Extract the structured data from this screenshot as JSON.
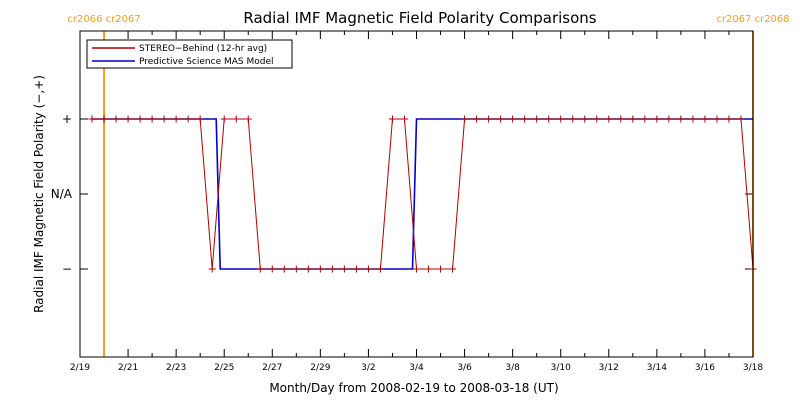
{
  "chart_data": {
    "type": "line",
    "title": "Radial IMF Magnetic Field Polarity Comparisons",
    "xlabel": "Month/Day from 2008-02-19 to 2008-03-18 (UT)",
    "ylabel": "Radial IMF Magnetic Field Polarity (−,+)",
    "x_range": [
      "2008-02-19",
      "2008-03-18"
    ],
    "x_tick_labels": [
      "2/19",
      "2/21",
      "2/23",
      "2/25",
      "2/27",
      "2/29",
      "3/2",
      "3/4",
      "3/6",
      "3/8",
      "3/10",
      "3/12",
      "3/14",
      "3/16",
      "3/18"
    ],
    "y_tick_labels": [
      "+",
      "N/A",
      "−"
    ],
    "carrington_markers": [
      {
        "date": "2008-02-20",
        "label": "cr2066 cr2067",
        "color": "#f0a020"
      },
      {
        "date": "2008-03-18",
        "label": "cr2067 cr2068",
        "color": "#f0a020"
      }
    ],
    "legend_placement": "top-left",
    "series": [
      {
        "name": "STEREO−Behind (12-hr avg)",
        "color": "#b00000",
        "style": "line+plus",
        "points": [
          [
            "2008-02-19 12:00",
            "+"
          ],
          [
            "2008-02-20 00:00",
            "+"
          ],
          [
            "2008-02-20 12:00",
            "+"
          ],
          [
            "2008-02-21 00:00",
            "+"
          ],
          [
            "2008-02-21 12:00",
            "+"
          ],
          [
            "2008-02-22 00:00",
            "+"
          ],
          [
            "2008-02-22 12:00",
            "+"
          ],
          [
            "2008-02-23 00:00",
            "+"
          ],
          [
            "2008-02-23 12:00",
            "+"
          ],
          [
            "2008-02-24 00:00",
            "+"
          ],
          [
            "2008-02-24 12:00",
            "−"
          ],
          [
            "2008-02-25 00:00",
            "+"
          ],
          [
            "2008-02-25 12:00",
            "+"
          ],
          [
            "2008-02-26 00:00",
            "+"
          ],
          [
            "2008-02-26 12:00",
            "−"
          ],
          [
            "2008-02-27 00:00",
            "−"
          ],
          [
            "2008-02-27 12:00",
            "−"
          ],
          [
            "2008-02-28 00:00",
            "−"
          ],
          [
            "2008-02-28 12:00",
            "−"
          ],
          [
            "2008-02-29 00:00",
            "−"
          ],
          [
            "2008-02-29 12:00",
            "−"
          ],
          [
            "2008-03-01 00:00",
            "−"
          ],
          [
            "2008-03-01 12:00",
            "−"
          ],
          [
            "2008-03-02 00:00",
            "−"
          ],
          [
            "2008-03-02 12:00",
            "−"
          ],
          [
            "2008-03-03 00:00",
            "+"
          ],
          [
            "2008-03-03 12:00",
            "+"
          ],
          [
            "2008-03-04 00:00",
            "−"
          ],
          [
            "2008-03-04 12:00",
            "−"
          ],
          [
            "2008-03-05 00:00",
            "−"
          ],
          [
            "2008-03-05 12:00",
            "−"
          ],
          [
            "2008-03-06 00:00",
            "+"
          ],
          [
            "2008-03-06 12:00",
            "+"
          ],
          [
            "2008-03-07 00:00",
            "+"
          ],
          [
            "2008-03-07 12:00",
            "+"
          ],
          [
            "2008-03-08 00:00",
            "+"
          ],
          [
            "2008-03-08 12:00",
            "+"
          ],
          [
            "2008-03-09 00:00",
            "+"
          ],
          [
            "2008-03-09 12:00",
            "+"
          ],
          [
            "2008-03-10 00:00",
            "+"
          ],
          [
            "2008-03-10 12:00",
            "+"
          ],
          [
            "2008-03-11 00:00",
            "+"
          ],
          [
            "2008-03-11 12:00",
            "+"
          ],
          [
            "2008-03-12 00:00",
            "+"
          ],
          [
            "2008-03-12 12:00",
            "+"
          ],
          [
            "2008-03-13 00:00",
            "+"
          ],
          [
            "2008-03-13 12:00",
            "+"
          ],
          [
            "2008-03-14 00:00",
            "+"
          ],
          [
            "2008-03-14 12:00",
            "+"
          ],
          [
            "2008-03-15 00:00",
            "+"
          ],
          [
            "2008-03-15 12:00",
            "+"
          ],
          [
            "2008-03-16 00:00",
            "+"
          ],
          [
            "2008-03-16 12:00",
            "+"
          ],
          [
            "2008-03-17 00:00",
            "+"
          ],
          [
            "2008-03-17 12:00",
            "+"
          ],
          [
            "2008-03-18 00:00",
            "−"
          ]
        ]
      },
      {
        "name": "Predictive Science MAS Model",
        "color": "#0000c8",
        "style": "step",
        "points": [
          [
            "2008-02-19 12:00",
            "+"
          ],
          [
            "2008-02-24 16:00",
            "+"
          ],
          [
            "2008-02-24 20:00",
            "−"
          ],
          [
            "2008-03-03 20:00",
            "−"
          ],
          [
            "2008-03-04 00:00",
            "+"
          ],
          [
            "2008-03-18 00:00",
            "+"
          ]
        ]
      }
    ]
  }
}
